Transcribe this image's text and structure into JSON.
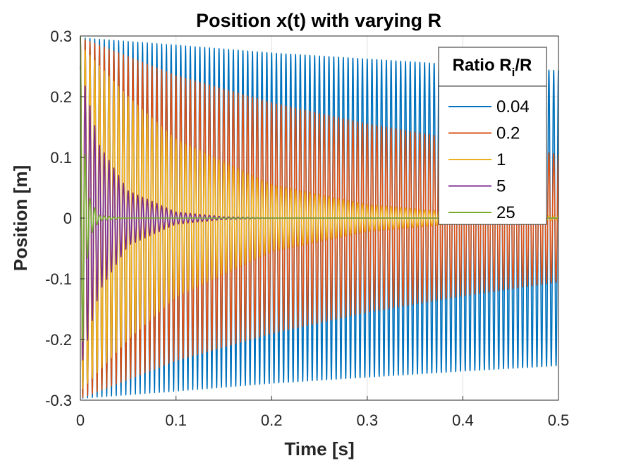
{
  "chart_data": {
    "type": "line",
    "title": "Position x(t) with varying R",
    "xlabel": "Time [s]",
    "ylabel": "Position [m]",
    "xlim": [
      0,
      0.5
    ],
    "ylim": [
      -0.3,
      0.3
    ],
    "xticks": [
      0,
      0.1,
      0.2,
      0.3,
      0.4,
      0.5
    ],
    "xtick_labels": [
      "0",
      "0.1",
      "0.2",
      "0.3",
      "0.4",
      "0.5"
    ],
    "yticks": [
      -0.3,
      -0.2,
      -0.1,
      0,
      0.1,
      0.2,
      0.3
    ],
    "ytick_labels": [
      "-0.3",
      "-0.2",
      "-0.1",
      "0",
      "0.1",
      "0.2",
      "0.3"
    ],
    "grid": true,
    "legend": {
      "title_main": "Ratio R",
      "title_sub": "i",
      "title_tail": "/R",
      "placement": "top-right"
    },
    "oscillation_frequency_hz": 200,
    "initial_amplitude": 0.3,
    "series": [
      {
        "name": "0.04",
        "color": "#0072BD",
        "envelope_t": [
          0,
          0.1,
          0.2,
          0.3,
          0.4,
          0.5
        ],
        "envelope_amp": [
          0.297,
          0.285,
          0.272,
          0.262,
          0.252,
          0.243
        ]
      },
      {
        "name": "0.2",
        "color": "#D95319",
        "envelope_t": [
          0,
          0.1,
          0.2,
          0.3,
          0.4,
          0.5
        ],
        "envelope_amp": [
          0.297,
          0.235,
          0.19,
          0.155,
          0.128,
          0.105
        ]
      },
      {
        "name": "1",
        "color": "#EDB120",
        "envelope_t": [
          0,
          0.05,
          0.1,
          0.2,
          0.3,
          0.4,
          0.5
        ],
        "envelope_amp": [
          0.285,
          0.2,
          0.13,
          0.055,
          0.022,
          0.008,
          0.003
        ]
      },
      {
        "name": "5",
        "color": "#7E2F8E",
        "envelope_t": [
          0,
          0.02,
          0.05,
          0.1,
          0.15,
          0.2
        ],
        "envelope_amp": [
          0.25,
          0.12,
          0.045,
          0.01,
          0.002,
          0.0
        ]
      },
      {
        "name": "25",
        "color": "#77AC30",
        "envelope_t": [
          0,
          0.005,
          0.01,
          0.02,
          0.05
        ],
        "envelope_amp": [
          0.3,
          0.1,
          0.03,
          0.004,
          0.0
        ]
      }
    ]
  }
}
